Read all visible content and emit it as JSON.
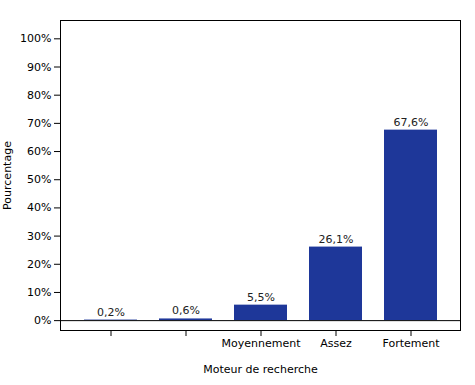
{
  "chart_data": {
    "type": "bar",
    "categories": [
      null,
      null,
      "Moyennement",
      "Assez",
      "Fortement"
    ],
    "values": [
      0.2,
      0.6,
      5.5,
      26.1,
      67.6
    ],
    "value_labels": [
      "0,2%",
      "0,6%",
      "5,5%",
      "26,1%",
      "67,6%"
    ],
    "data_labels": true,
    "color": "#1E3799",
    "xlabel": "Moteur de recherche",
    "ylabel": "Pourcentage",
    "ylim": [
      -3.5,
      106.5
    ],
    "yticks": [
      {
        "value": 0,
        "label": "0%"
      },
      {
        "value": 10,
        "label": "10%"
      },
      {
        "value": 20,
        "label": "20%"
      },
      {
        "value": 30,
        "label": "30%"
      },
      {
        "value": 40,
        "label": "40%"
      },
      {
        "value": 50,
        "label": "50%"
      },
      {
        "value": 60,
        "label": "60%"
      },
      {
        "value": 70,
        "label": "70%"
      },
      {
        "value": 80,
        "label": "80%"
      },
      {
        "value": 90,
        "label": "90%"
      },
      {
        "value": 100,
        "label": "100%"
      }
    ],
    "grid": false
  }
}
